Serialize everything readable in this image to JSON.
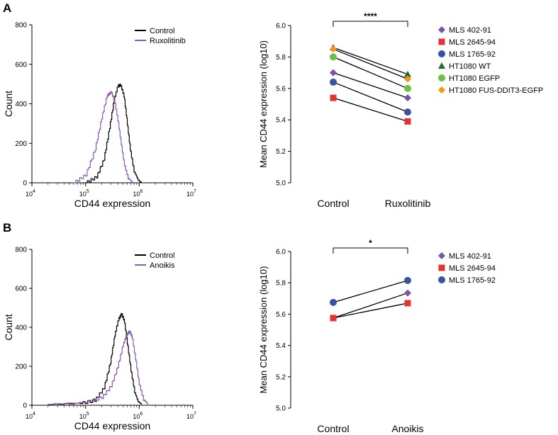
{
  "panels": [
    {
      "letter": "A"
    },
    {
      "letter": "B"
    }
  ],
  "chart_data": [
    {
      "id": "A-hist",
      "type": "line",
      "xlabel": "CD44 expression",
      "ylabel": "Count",
      "xscale": "log",
      "xlim": [
        10000,
        10000000
      ],
      "ylim": [
        0,
        800
      ],
      "yticks": [
        0,
        200,
        400,
        600,
        800
      ],
      "xticks": [
        {
          "base": "10",
          "exp": "4"
        },
        {
          "base": "10",
          "exp": "5"
        },
        {
          "base": "10",
          "exp": "6"
        },
        {
          "base": "10",
          "exp": "7"
        }
      ],
      "legend_position": "top-right",
      "series": [
        {
          "name": "Control",
          "color": "#000000",
          "x": [
            100000,
            160000,
            220000,
            280000,
            340000,
            400000,
            450000,
            520000,
            600000,
            680000,
            800000,
            950000,
            1100000
          ],
          "y": [
            0,
            30,
            120,
            280,
            420,
            490,
            495,
            440,
            300,
            170,
            60,
            15,
            0
          ]
        },
        {
          "name": "Ruxolitinib",
          "color": "#8a5bb3",
          "x": [
            60000,
            100000,
            150000,
            200000,
            250000,
            300000,
            350000,
            400000,
            460000,
            530000,
            620000,
            750000
          ],
          "y": [
            0,
            40,
            170,
            330,
            440,
            460,
            410,
            320,
            200,
            90,
            25,
            0
          ]
        }
      ]
    },
    {
      "id": "A-scatter",
      "type": "scatter",
      "ylabel": "Mean CD44 expression (log10)",
      "categories": [
        "Control",
        "Ruxolitinib"
      ],
      "ylim": [
        5.0,
        6.0
      ],
      "yticks": [
        "5.0",
        "5.2",
        "5.4",
        "5.6",
        "5.8",
        "6.0"
      ],
      "significance": "****",
      "legend_position": "right",
      "series": [
        {
          "name": "MLS 402-91",
          "color": "#7b52a8",
          "marker": "diamond",
          "values": [
            5.7,
            5.54
          ]
        },
        {
          "name": "MLS 2645-94",
          "color": "#e63234",
          "marker": "square",
          "values": [
            5.54,
            5.39
          ]
        },
        {
          "name": "MLS 1765-92",
          "color": "#3953a4",
          "marker": "circle",
          "values": [
            5.64,
            5.45
          ]
        },
        {
          "name": "HT1080 WT",
          "color": "#1e6b2e",
          "marker": "triangle",
          "values": [
            5.86,
            5.69
          ]
        },
        {
          "name": "HT1080 EGFP",
          "color": "#6cc04a",
          "marker": "circle",
          "values": [
            5.8,
            5.6
          ]
        },
        {
          "name": "HT1080 FUS-DDIT3-EGFP",
          "color": "#f7941d",
          "marker": "diamond",
          "values": [
            5.85,
            5.66
          ]
        }
      ]
    },
    {
      "id": "B-hist",
      "type": "line",
      "xlabel": "CD44 expression",
      "ylabel": "Count",
      "xscale": "log",
      "xlim": [
        10000,
        10000000
      ],
      "ylim": [
        0,
        800
      ],
      "yticks": [
        0,
        200,
        400,
        600,
        800
      ],
      "xticks": [
        {
          "base": "10",
          "exp": "4"
        },
        {
          "base": "10",
          "exp": "5"
        },
        {
          "base": "10",
          "exp": "6"
        },
        {
          "base": "10",
          "exp": "7"
        }
      ],
      "legend_position": "top-right",
      "series": [
        {
          "name": "Control",
          "color": "#000000",
          "x": [
            20000,
            80000,
            150000,
            220000,
            290000,
            350000,
            410000,
            470000,
            530000,
            600000,
            700000,
            820000,
            950000,
            1100000
          ],
          "y": [
            5,
            10,
            25,
            90,
            220,
            360,
            440,
            470,
            430,
            320,
            180,
            70,
            20,
            5
          ]
        },
        {
          "name": "Anoikis",
          "color": "#8a5bb3",
          "x": [
            20000,
            100000,
            200000,
            300000,
            400000,
            500000,
            580000,
            660000,
            740000,
            850000,
            1000000,
            1200000,
            1450000
          ],
          "y": [
            5,
            15,
            40,
            100,
            200,
            310,
            360,
            380,
            350,
            240,
            110,
            30,
            5
          ]
        }
      ]
    },
    {
      "id": "B-scatter",
      "type": "scatter",
      "ylabel": "Mean CD44 expression (log10)",
      "categories": [
        "Control",
        "Anoikis"
      ],
      "ylim": [
        5.0,
        6.0
      ],
      "yticks": [
        "5.0",
        "5.2",
        "5.4",
        "5.6",
        "5.8",
        "6.0"
      ],
      "significance": "*",
      "legend_position": "right",
      "series": [
        {
          "name": "MLS 402-91",
          "color": "#7b52a8",
          "marker": "diamond",
          "values": [
            5.575,
            5.735
          ]
        },
        {
          "name": "MLS 2645-94",
          "color": "#e63234",
          "marker": "square",
          "values": [
            5.575,
            5.67
          ]
        },
        {
          "name": "MLS 1765-92",
          "color": "#3953a4",
          "marker": "circle",
          "values": [
            5.675,
            5.815
          ]
        }
      ]
    }
  ]
}
